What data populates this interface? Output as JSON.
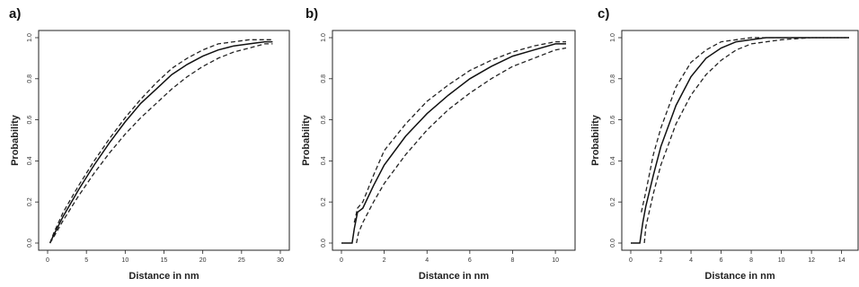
{
  "chart_data": [
    {
      "type": "line",
      "panel_label": "a)",
      "xlabel": "Distance in nm",
      "ylabel": "Probability",
      "xlim": [
        0,
        30
      ],
      "ylim": [
        0,
        1
      ],
      "xticks": [
        0,
        5,
        10,
        15,
        20,
        25,
        30
      ],
      "yticks": [
        0.0,
        0.2,
        0.4,
        0.6,
        0.8,
        1.0
      ],
      "ytick_labels": [
        "0.0",
        "0.2",
        "0.4",
        "0.6",
        "0.8",
        "1.0"
      ],
      "grid": false,
      "series": [
        {
          "style": "solid",
          "x": [
            0.3,
            0.8,
            2,
            4,
            6,
            8,
            10,
            12,
            14,
            16,
            18,
            20,
            22,
            24,
            26,
            28,
            29
          ],
          "y": [
            0,
            0.04,
            0.13,
            0.26,
            0.38,
            0.49,
            0.59,
            0.68,
            0.75,
            0.82,
            0.87,
            0.91,
            0.94,
            0.96,
            0.97,
            0.98,
            0.98
          ]
        },
        {
          "style": "dashed",
          "x": [
            0.3,
            0.8,
            2,
            4,
            6,
            8,
            10,
            12,
            14,
            16,
            18,
            20,
            22,
            24,
            26,
            28,
            29
          ],
          "y": [
            0,
            0.05,
            0.15,
            0.28,
            0.4,
            0.51,
            0.61,
            0.7,
            0.78,
            0.85,
            0.9,
            0.94,
            0.97,
            0.98,
            0.99,
            0.99,
            0.99
          ]
        },
        {
          "style": "dashed",
          "x": [
            0.3,
            0.8,
            2,
            4,
            6,
            8,
            10,
            12,
            14,
            16,
            18,
            20,
            22,
            24,
            26,
            28,
            29
          ],
          "y": [
            0,
            0.03,
            0.11,
            0.23,
            0.34,
            0.44,
            0.53,
            0.61,
            0.68,
            0.75,
            0.81,
            0.86,
            0.9,
            0.93,
            0.95,
            0.97,
            0.97
          ]
        }
      ]
    },
    {
      "type": "line",
      "panel_label": "b)",
      "xlabel": "Distance in nm",
      "ylabel": "Probability",
      "xlim": [
        0,
        10.5
      ],
      "ylim": [
        0,
        1
      ],
      "xticks": [
        0,
        2,
        4,
        6,
        8,
        10
      ],
      "yticks": [
        0.0,
        0.2,
        0.4,
        0.6,
        0.8,
        1.0
      ],
      "ytick_labels": [
        "0.0",
        "0.2",
        "0.4",
        "0.6",
        "0.8",
        "1.0"
      ],
      "grid": false,
      "series": [
        {
          "style": "solid",
          "x": [
            0,
            0.5,
            0.6,
            0.75,
            1,
            1.5,
            2,
            3,
            4,
            5,
            6,
            7,
            8,
            9,
            10,
            10.5
          ],
          "y": [
            0,
            0,
            0.07,
            0.15,
            0.17,
            0.28,
            0.38,
            0.52,
            0.63,
            0.72,
            0.8,
            0.86,
            0.91,
            0.94,
            0.97,
            0.97
          ]
        },
        {
          "style": "dashed",
          "x": [
            0.6,
            0.75,
            1,
            1.5,
            2,
            3,
            4,
            5,
            6,
            7,
            8,
            9,
            10,
            10.5
          ],
          "y": [
            0.1,
            0.17,
            0.2,
            0.33,
            0.45,
            0.58,
            0.69,
            0.77,
            0.84,
            0.89,
            0.93,
            0.96,
            0.98,
            0.98
          ]
        },
        {
          "style": "dashed",
          "x": [
            0.7,
            0.8,
            1,
            1.5,
            2,
            3,
            4,
            5,
            6,
            7,
            8,
            9,
            10,
            10.5
          ],
          "y": [
            0,
            0.05,
            0.1,
            0.2,
            0.29,
            0.43,
            0.55,
            0.65,
            0.73,
            0.8,
            0.86,
            0.9,
            0.94,
            0.95
          ]
        }
      ]
    },
    {
      "type": "line",
      "panel_label": "c)",
      "xlabel": "Distance in nm",
      "ylabel": "Probability",
      "xlim": [
        0,
        14.5
      ],
      "ylim": [
        0,
        1
      ],
      "xticks": [
        0,
        2,
        4,
        6,
        8,
        10,
        12,
        14
      ],
      "yticks": [
        0.0,
        0.2,
        0.4,
        0.6,
        0.8,
        1.0
      ],
      "ytick_labels": [
        "0.0",
        "0.2",
        "0.4",
        "0.6",
        "0.8",
        "1.0"
      ],
      "grid": false,
      "series": [
        {
          "style": "solid",
          "x": [
            0,
            0.6,
            0.8,
            1,
            1.5,
            2,
            3,
            4,
            5,
            6,
            7,
            8,
            9,
            10,
            12,
            14.5
          ],
          "y": [
            0,
            0,
            0.1,
            0.18,
            0.33,
            0.47,
            0.67,
            0.81,
            0.9,
            0.95,
            0.98,
            0.99,
            1,
            1,
            1,
            1
          ]
        },
        {
          "style": "dashed",
          "x": [
            0.7,
            1,
            1.5,
            2,
            3,
            4,
            5,
            6,
            7,
            8,
            9,
            10,
            12,
            14.5
          ],
          "y": [
            0.15,
            0.25,
            0.43,
            0.56,
            0.76,
            0.88,
            0.94,
            0.98,
            0.99,
            1,
            1,
            1,
            1,
            1
          ]
        },
        {
          "style": "dashed",
          "x": [
            0.9,
            1,
            1.5,
            2,
            3,
            4,
            5,
            6,
            7,
            8,
            9,
            10,
            12,
            14.5
          ],
          "y": [
            0,
            0.08,
            0.24,
            0.38,
            0.58,
            0.72,
            0.82,
            0.89,
            0.94,
            0.97,
            0.98,
            0.99,
            1,
            1
          ]
        }
      ]
    }
  ]
}
